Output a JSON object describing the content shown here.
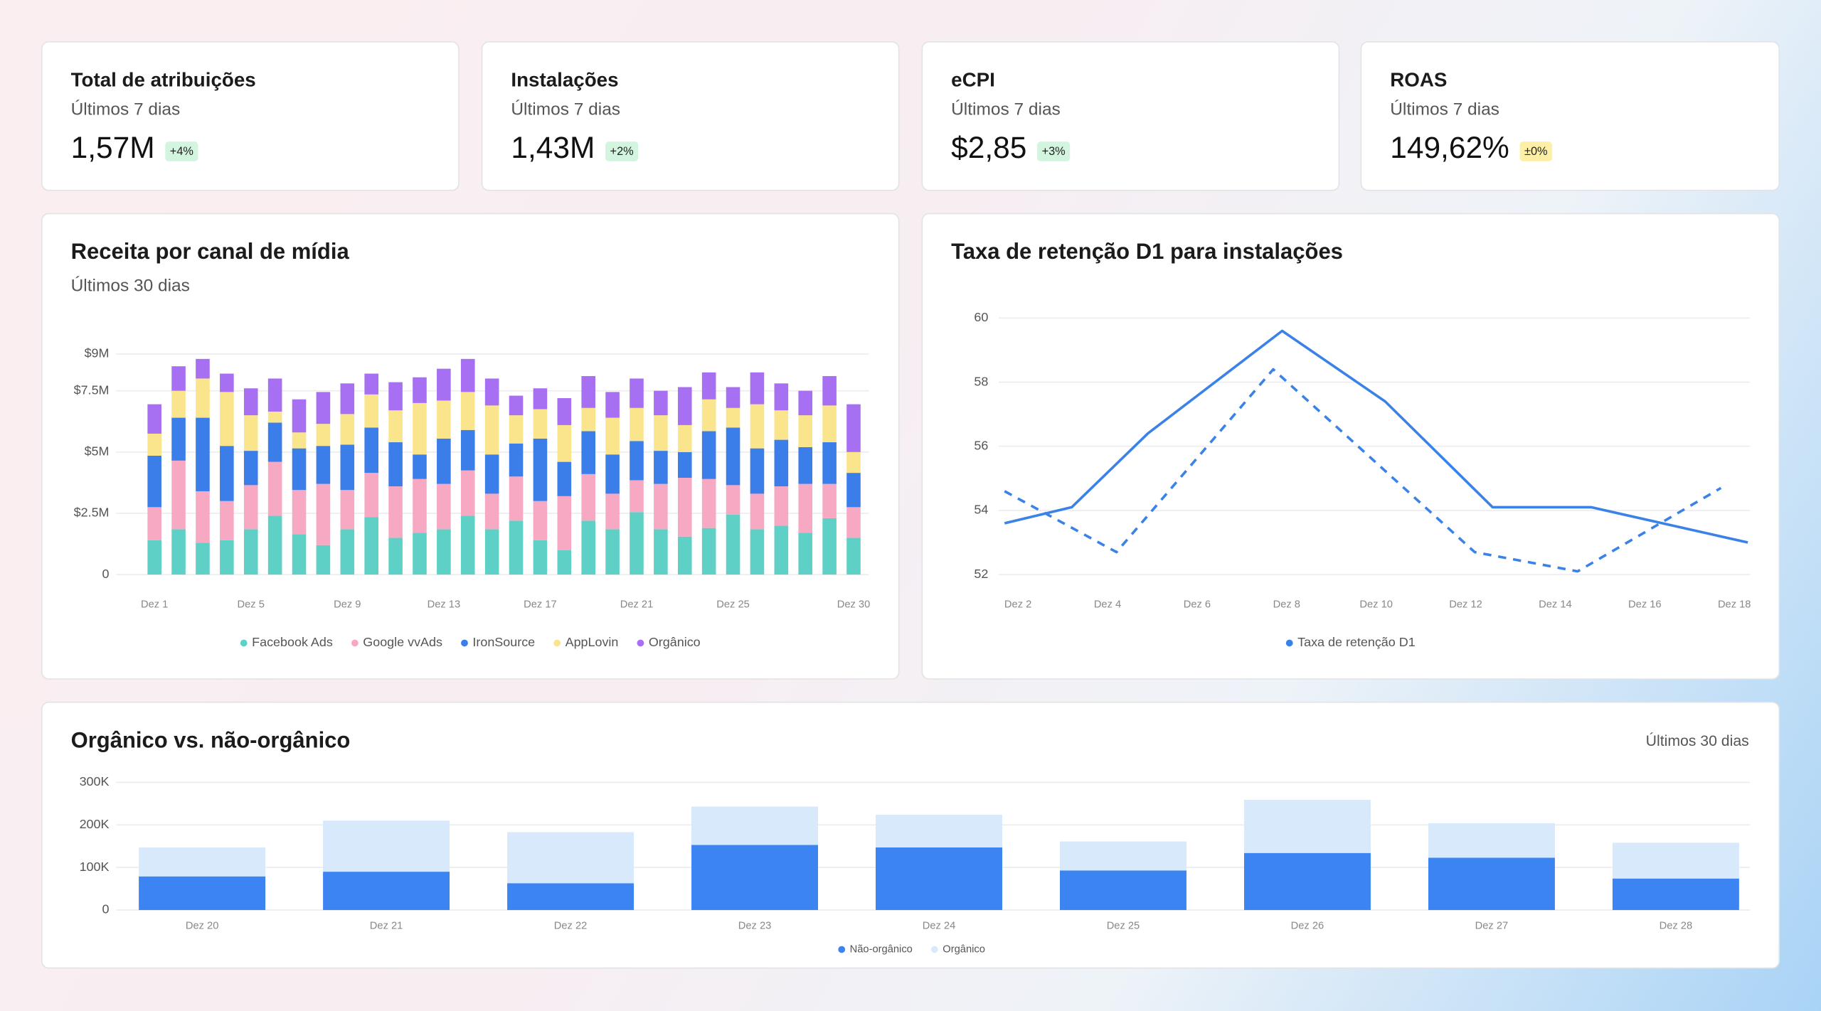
{
  "cards": [
    {
      "title": "Total de atribuições",
      "subtitle": "Últimos 7 dias",
      "value": "1,57M",
      "change": "+4%",
      "badge_color": "#d3f5df",
      "badge_text_color": "#1f7a45"
    },
    {
      "title": "Instalações",
      "subtitle": "Últimos 7 dias",
      "value": "1,43M",
      "change": "+2%",
      "badge_color": "#d3f5df",
      "badge_text_color": "#1f7a45"
    },
    {
      "title": "eCPI",
      "subtitle": "Últimos 7 dias",
      "value": "$2,85",
      "change": "+3%",
      "badge_color": "#d3f5df",
      "badge_text_color": "#1f7a45"
    },
    {
      "title": "ROAS",
      "subtitle": "Últimos 7 dias",
      "value": "149,62%",
      "change": "±0%",
      "badge_color": "#fdf0a6",
      "badge_text_color": "#7a6210"
    }
  ],
  "chart_data": [
    {
      "type": "stacked_bar",
      "title": "Receita por canal de mídia",
      "subtitle": "Últimos 30 dias",
      "categories": [
        "Dez 1",
        null,
        null,
        null,
        "Dez 5",
        null,
        null,
        null,
        "Dez 9",
        null,
        null,
        null,
        "Dez 13",
        null,
        null,
        null,
        "Dez 17",
        null,
        null,
        null,
        "Dez 21",
        null,
        null,
        null,
        "Dez 25",
        null,
        null,
        null,
        null,
        "Dez 30"
      ],
      "series": [
        {
          "name": "Facebook Ads",
          "color": "#5fd0c6",
          "values": [
            1.4,
            1.85,
            1.3,
            1.4,
            1.85,
            2.4,
            1.65,
            1.2,
            1.85,
            2.35,
            1.5,
            1.7,
            1.85,
            2.4,
            1.85,
            2.2,
            1.4,
            1.0,
            2.2,
            1.85,
            2.55,
            1.85,
            1.55,
            1.9,
            2.45,
            1.85,
            2.0,
            1.7,
            2.3,
            1.5
          ]
        },
        {
          "name": "Google vvAds",
          "color": "#f7a9c4",
          "values": [
            1.35,
            2.8,
            2.1,
            1.6,
            1.8,
            2.2,
            1.8,
            2.5,
            1.6,
            1.8,
            2.1,
            2.2,
            1.85,
            1.85,
            1.45,
            1.8,
            1.6,
            2.2,
            1.9,
            1.45,
            1.3,
            1.85,
            2.4,
            2.0,
            1.2,
            1.45,
            1.6,
            2.0,
            1.4,
            1.25
          ]
        },
        {
          "name": "IronSource",
          "color": "#3b7de9",
          "values": [
            2.1,
            1.75,
            3.0,
            2.25,
            1.4,
            1.6,
            1.7,
            1.55,
            1.85,
            1.85,
            1.8,
            1.0,
            1.85,
            1.65,
            1.6,
            1.35,
            2.55,
            1.4,
            1.75,
            1.6,
            1.6,
            1.35,
            1.05,
            1.95,
            2.35,
            1.85,
            1.9,
            1.5,
            1.7,
            1.4
          ]
        },
        {
          "name": "AppLovin",
          "color": "#fbe58c",
          "values": [
            0.9,
            1.1,
            1.6,
            2.2,
            1.45,
            0.45,
            0.65,
            0.9,
            1.25,
            1.35,
            1.3,
            2.1,
            1.55,
            1.55,
            2.0,
            1.15,
            1.2,
            1.5,
            0.95,
            1.5,
            1.35,
            1.45,
            1.1,
            1.3,
            0.8,
            1.8,
            1.2,
            1.3,
            1.5,
            0.85
          ]
        },
        {
          "name": "Orgânico",
          "color": "#a76ff1",
          "values": [
            1.2,
            1.0,
            0.8,
            0.75,
            1.1,
            1.35,
            1.35,
            1.3,
            1.25,
            0.85,
            1.15,
            1.05,
            1.3,
            1.35,
            1.1,
            0.8,
            0.85,
            1.1,
            1.3,
            1.05,
            1.2,
            1.0,
            1.55,
            1.1,
            0.85,
            1.3,
            1.1,
            1.0,
            1.2,
            1.95
          ]
        }
      ],
      "ylim": [
        0,
        9
      ],
      "yticks": [
        0,
        {
          "value": 2.5,
          "label": "$2.5M"
        },
        {
          "value": 5,
          "label": "$5M"
        },
        {
          "value": 7.5,
          "label": "$7.5M"
        },
        {
          "value": 9,
          "label": "$9M"
        }
      ],
      "grid": true,
      "legend": "bottom"
    },
    {
      "type": "line",
      "title": "Taxa de retenção D1 para instalações",
      "series": [
        {
          "name": "Taxa de retenção D1",
          "color": "#3b82e8",
          "x": [
            1.7,
            3.2,
            4.9,
            7.9,
            10.2,
            12.6,
            14.8,
            18.3
          ],
          "values": [
            53.6,
            54.1,
            56.4,
            59.6,
            57.4,
            54.1,
            54.1,
            53.0
          ]
        },
        {
          "color": "#3b82e8",
          "dash": true,
          "x": [
            1.7,
            4.2,
            7.7,
            12.2,
            14.5,
            17.7
          ],
          "values": [
            54.6,
            52.7,
            58.4,
            52.7,
            52.1,
            54.7
          ]
        }
      ],
      "xlim": [
        1.7,
        18.3
      ],
      "xticks": [
        {
          "value": 2,
          "label": "Dez 2"
        },
        {
          "value": 4,
          "label": "Dez 4"
        },
        {
          "value": 6,
          "label": "Dez 6"
        },
        {
          "value": 8,
          "label": "Dez 8"
        },
        {
          "value": 10,
          "label": "Dez 10"
        },
        {
          "value": 12,
          "label": "Dez 12"
        },
        {
          "value": 14,
          "label": "Dez 14"
        },
        {
          "value": 16,
          "label": "Dez 16"
        },
        {
          "value": 18,
          "label": "Dez 18"
        }
      ],
      "ylim": [
        52,
        60
      ],
      "yticks": [
        52,
        54,
        56,
        58,
        60
      ],
      "grid": true,
      "legend": "bottom"
    },
    {
      "type": "stacked_bar",
      "title": "Orgânico vs. não-orgânico",
      "subtitle": "Últimos 30 dias",
      "categories": [
        "Dez 20",
        "Dez 21",
        "Dez 22",
        "Dez 23",
        "Dez 24",
        "Dez 25",
        "Dez 26",
        "Dez 27",
        "Dez 28"
      ],
      "series": [
        {
          "name": "Não-orgânico",
          "color": "#3b84f1",
          "values": [
            79,
            90,
            63,
            153,
            147,
            93,
            134,
            123,
            74
          ]
        },
        {
          "name": "Orgânico",
          "color": "#d7e9fb",
          "values": [
            68,
            120,
            120,
            90,
            77,
            68,
            125,
            81,
            84
          ]
        }
      ],
      "ylim": [
        0,
        300
      ],
      "yticks": [
        0,
        {
          "value": 100,
          "label": "100K"
        },
        {
          "value": 200,
          "label": "200K"
        },
        {
          "value": 300,
          "label": "300K"
        }
      ],
      "grid": true,
      "legend": "bottom"
    }
  ]
}
